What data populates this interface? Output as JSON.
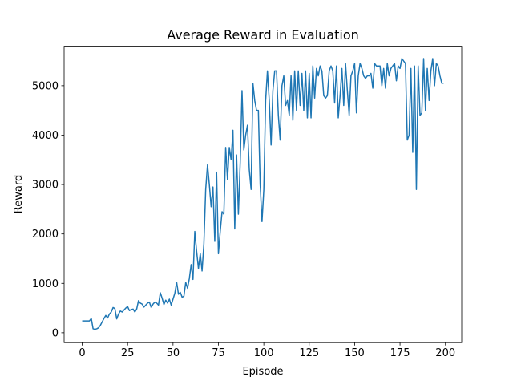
{
  "chart_data": {
    "type": "line",
    "title": "Average Reward in Evaluation",
    "x_label": "Episode",
    "y_label": "Reward",
    "x": [
      0,
      1,
      2,
      3,
      4,
      5,
      6,
      7,
      8,
      9,
      10,
      11,
      12,
      13,
      14,
      15,
      16,
      17,
      18,
      19,
      20,
      21,
      22,
      23,
      24,
      25,
      26,
      27,
      28,
      29,
      30,
      31,
      32,
      33,
      34,
      35,
      36,
      37,
      38,
      39,
      40,
      41,
      42,
      43,
      44,
      45,
      46,
      47,
      48,
      49,
      50,
      51,
      52,
      53,
      54,
      55,
      56,
      57,
      58,
      59,
      60,
      61,
      62,
      63,
      64,
      65,
      66,
      67,
      68,
      69,
      70,
      71,
      72,
      73,
      74,
      75,
      76,
      77,
      78,
      79,
      80,
      81,
      82,
      83,
      84,
      85,
      86,
      87,
      88,
      89,
      90,
      91,
      92,
      93,
      94,
      95,
      96,
      97,
      98,
      99,
      100,
      101,
      102,
      103,
      104,
      105,
      106,
      107,
      108,
      109,
      110,
      111,
      112,
      113,
      114,
      115,
      116,
      117,
      118,
      119,
      120,
      121,
      122,
      123,
      124,
      125,
      126,
      127,
      128,
      129,
      130,
      131,
      132,
      133,
      134,
      135,
      136,
      137,
      138,
      139,
      140,
      141,
      142,
      143,
      144,
      145,
      146,
      147,
      148,
      149,
      150,
      151,
      152,
      153,
      154,
      155,
      156,
      157,
      158,
      159,
      160,
      161,
      162,
      163,
      164,
      165,
      166,
      167,
      168,
      169,
      170,
      171,
      172,
      173,
      174,
      175,
      176,
      177,
      178,
      179,
      180,
      181,
      182,
      183,
      184,
      185,
      186,
      187,
      188,
      189,
      190,
      191,
      192,
      193,
      194,
      195,
      196,
      197,
      198,
      199
    ],
    "series": [
      {
        "name": "Reward",
        "color": "#1f77b4",
        "values": [
          240,
          240,
          240,
          240,
          240,
          290,
          80,
          70,
          80,
          100,
          150,
          220,
          290,
          350,
          300,
          380,
          420,
          510,
          490,
          280,
          380,
          440,
          420,
          460,
          500,
          530,
          450,
          470,
          480,
          420,
          480,
          650,
          600,
          580,
          520,
          560,
          600,
          620,
          510,
          580,
          620,
          600,
          560,
          810,
          700,
          570,
          660,
          600,
          680,
          560,
          680,
          800,
          1020,
          780,
          820,
          720,
          740,
          1020,
          900,
          1100,
          1380,
          1080,
          2050,
          1650,
          1300,
          1600,
          1250,
          1800,
          2900,
          3400,
          3000,
          2550,
          2950,
          1850,
          3250,
          1600,
          2050,
          2450,
          2400,
          3750,
          3100,
          3750,
          3500,
          4100,
          2100,
          3600,
          2400,
          3450,
          4900,
          3700,
          4000,
          4200,
          3300,
          2900,
          5050,
          4700,
          4500,
          4500,
          3000,
          2250,
          2900,
          4700,
          5300,
          4700,
          3800,
          4900,
          5300,
          5300,
          4400,
          3900,
          5000,
          5200,
          4600,
          4700,
          4400,
          5200,
          4300,
          5300,
          4500,
          5300,
          4600,
          5250,
          4500,
          5300,
          4350,
          5250,
          4350,
          5400,
          4750,
          5350,
          5200,
          5400,
          5300,
          4800,
          4750,
          4800,
          5300,
          5400,
          5300,
          4650,
          5400,
          4350,
          4800,
          5350,
          4600,
          5450,
          4900,
          4400,
          5200,
          5300,
          5450,
          4450,
          5200,
          5450,
          5350,
          5200,
          5150,
          5200,
          5200,
          5250,
          4950,
          5450,
          5400,
          5400,
          5400,
          5000,
          5350,
          4950,
          5450,
          5200,
          5350,
          5400,
          5450,
          5100,
          5400,
          5350,
          5550,
          5500,
          5450,
          3900,
          4000,
          5350,
          3650,
          5400,
          2900,
          5400,
          4400,
          4450,
          5550,
          4500,
          5350,
          4700,
          5300,
          5550,
          5000,
          5450,
          5400,
          5200,
          5050,
          5050
        ]
      }
    ],
    "xlim": [
      -9.95,
      208.95
    ],
    "ylim": [
      -200,
      5800
    ],
    "xticks": [
      0,
      25,
      50,
      75,
      100,
      125,
      150,
      175,
      200
    ],
    "yticks": [
      0,
      1000,
      2000,
      3000,
      4000,
      5000
    ]
  }
}
